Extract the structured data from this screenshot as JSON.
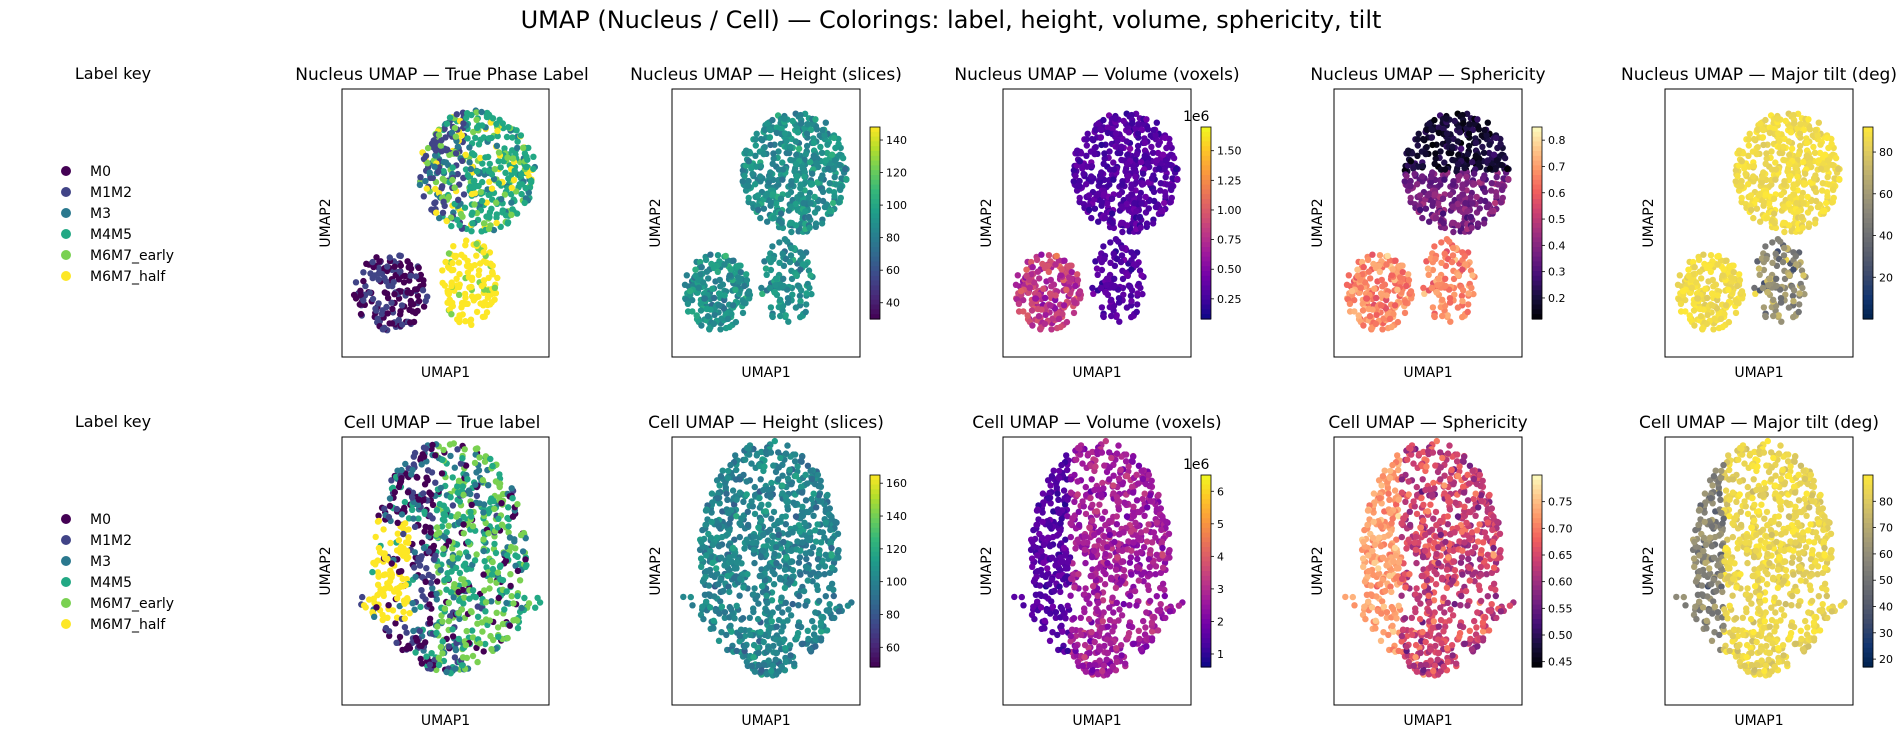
{
  "figure": {
    "title": "UMAP (Nucleus / Cell) — Colorings: label, height, volume, sphericity, tilt"
  },
  "legend_key": {
    "title": "Label key",
    "entries": [
      {
        "label": "M0",
        "color": "#440154"
      },
      {
        "label": "M1M2",
        "color": "#414487"
      },
      {
        "label": "M3",
        "color": "#2a788e"
      },
      {
        "label": "M4M5",
        "color": "#22a884"
      },
      {
        "label": "M6M7_early",
        "color": "#7ad151"
      },
      {
        "label": "M6M7_half",
        "color": "#fde725"
      }
    ]
  },
  "chart_data": [
    {
      "type": "scatter",
      "row": "nucleus",
      "title": "Nucleus UMAP — True Phase Label",
      "xlabel": "UMAP1",
      "ylabel": "UMAP2",
      "coloring": "categorical",
      "colormap": "viridis",
      "grid": false,
      "legend": "left (Label key)"
    },
    {
      "type": "scatter",
      "row": "nucleus",
      "title": "Nucleus UMAP — Height (slices)",
      "xlabel": "UMAP1",
      "ylabel": "UMAP2",
      "coloring": "continuous",
      "colormap": "viridis",
      "colorbar": {
        "min": 30,
        "max": 148,
        "ticks": [
          "140",
          "120",
          "100",
          "80",
          "60",
          "40"
        ],
        "offset_label": ""
      },
      "grid": false
    },
    {
      "type": "scatter",
      "row": "nucleus",
      "title": "Nucleus UMAP — Volume (voxels)",
      "xlabel": "UMAP1",
      "ylabel": "UMAP2",
      "coloring": "continuous",
      "colormap": "plasma",
      "colorbar": {
        "min": 0.08,
        "max": 1.7,
        "ticks": [
          "1.50",
          "1.25",
          "1.00",
          "0.75",
          "0.50",
          "0.25"
        ],
        "offset_label": "1e6"
      },
      "grid": false
    },
    {
      "type": "scatter",
      "row": "nucleus",
      "title": "Nucleus UMAP — Sphericity",
      "xlabel": "UMAP1",
      "ylabel": "UMAP2",
      "coloring": "continuous",
      "colormap": "magma",
      "colorbar": {
        "min": 0.12,
        "max": 0.85,
        "ticks": [
          "0.8",
          "0.7",
          "0.6",
          "0.5",
          "0.4",
          "0.3",
          "0.2"
        ],
        "offset_label": ""
      },
      "grid": false
    },
    {
      "type": "scatter",
      "row": "nucleus",
      "title": "Nucleus UMAP — Major tilt (deg)",
      "xlabel": "UMAP1",
      "ylabel": "UMAP2",
      "coloring": "continuous",
      "colormap": "cividis",
      "colorbar": {
        "min": 0,
        "max": 92,
        "ticks": [
          "80",
          "60",
          "40",
          "20"
        ],
        "offset_label": ""
      },
      "grid": false
    },
    {
      "type": "scatter",
      "row": "cell",
      "title": "Cell UMAP — True label",
      "xlabel": "UMAP1",
      "ylabel": "UMAP2",
      "coloring": "categorical",
      "colormap": "viridis",
      "grid": false,
      "legend": "left (Label key)"
    },
    {
      "type": "scatter",
      "row": "cell",
      "title": "Cell UMAP — Height (slices)",
      "xlabel": "UMAP1",
      "ylabel": "UMAP2",
      "coloring": "continuous",
      "colormap": "viridis",
      "colorbar": {
        "min": 48,
        "max": 165,
        "ticks": [
          "160",
          "140",
          "120",
          "100",
          "80",
          "60"
        ],
        "offset_label": ""
      },
      "grid": false
    },
    {
      "type": "scatter",
      "row": "cell",
      "title": "Cell UMAP — Volume (voxels)",
      "xlabel": "UMAP1",
      "ylabel": "UMAP2",
      "coloring": "continuous",
      "colormap": "plasma",
      "colorbar": {
        "min": 0.6,
        "max": 6.5,
        "ticks": [
          "6",
          "5",
          "4",
          "3",
          "2",
          "1"
        ],
        "offset_label": "1e6"
      },
      "grid": false
    },
    {
      "type": "scatter",
      "row": "cell",
      "title": "Cell UMAP — Sphericity",
      "xlabel": "UMAP1",
      "ylabel": "UMAP2",
      "coloring": "continuous",
      "colormap": "magma",
      "colorbar": {
        "min": 0.44,
        "max": 0.8,
        "ticks": [
          "0.75",
          "0.70",
          "0.65",
          "0.60",
          "0.55",
          "0.50",
          "0.45"
        ],
        "offset_label": ""
      },
      "grid": false
    },
    {
      "type": "scatter",
      "row": "cell",
      "title": "Cell UMAP — Major tilt (deg)",
      "xlabel": "UMAP1",
      "ylabel": "UMAP2",
      "coloring": "continuous",
      "colormap": "cividis",
      "colorbar": {
        "min": 17,
        "max": 90,
        "ticks": [
          "80",
          "70",
          "60",
          "50",
          "40",
          "30",
          "20"
        ],
        "offset_label": ""
      },
      "grid": false
    }
  ]
}
